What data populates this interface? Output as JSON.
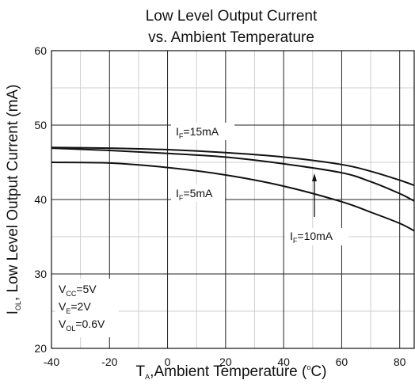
{
  "chart_data": {
    "type": "line",
    "title_lines": [
      "Low Level Output Current",
      "vs. Ambient Temperature"
    ],
    "xlabel": {
      "main": "T",
      "sub": "A",
      "rest": ",Ambient Temperature (",
      "sup": "o",
      "end": "C)"
    },
    "ylabel": {
      "main": "I",
      "sub": "OL",
      "rest": ", Low Level Output Current (mA)"
    },
    "xlim": [
      -40,
      85
    ],
    "ylim": [
      20,
      60
    ],
    "xticks": [
      -40,
      -20,
      0,
      20,
      40,
      60,
      80
    ],
    "yticks": [
      20,
      30,
      40,
      50,
      60
    ],
    "grid": true,
    "series": [
      {
        "name": "IF=15mA",
        "x": [
          -40,
          -20,
          0,
          20,
          40,
          60,
          70,
          80,
          85
        ],
        "y": [
          47.0,
          46.9,
          46.7,
          46.3,
          45.7,
          44.7,
          43.8,
          42.6,
          41.9
        ]
      },
      {
        "name": "IF=10mA",
        "x": [
          -40,
          -20,
          0,
          20,
          40,
          60,
          70,
          80,
          85
        ],
        "y": [
          46.9,
          46.6,
          46.2,
          45.7,
          44.8,
          43.6,
          42.4,
          40.8,
          39.8
        ]
      },
      {
        "name": "IF=5mA",
        "x": [
          -40,
          -20,
          0,
          20,
          40,
          60,
          70,
          80,
          85
        ],
        "y": [
          45.0,
          44.9,
          44.3,
          43.3,
          41.8,
          39.7,
          38.3,
          36.8,
          35.8
        ]
      }
    ],
    "curve_labels": [
      {
        "main": "I",
        "sub": "F",
        "rest": "=15mA"
      },
      {
        "main": "I",
        "sub": "F",
        "rest": "=5mA"
      },
      {
        "main": "I",
        "sub": "F",
        "rest": "=10mA"
      }
    ],
    "conditions": [
      {
        "main": "V",
        "sub": "CC",
        "rest": "=5V"
      },
      {
        "main": "V",
        "sub": "E",
        "rest": "=2V"
      },
      {
        "main": "V",
        "sub": "OL",
        "rest": "=0.6V"
      }
    ]
  }
}
